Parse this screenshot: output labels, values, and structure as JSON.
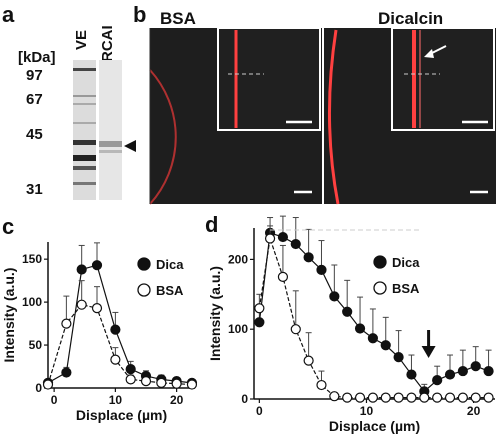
{
  "panels": {
    "a": {
      "letter": "a",
      "unit_label": "[kDa]",
      "lane_labels": [
        "VE",
        "RCAI"
      ],
      "markers": [
        "97",
        "67",
        "45",
        "31"
      ],
      "band_arrow": "arrowhead"
    },
    "b": {
      "letter": "b",
      "images": [
        {
          "label": "BSA"
        },
        {
          "label": "Dicalcin"
        }
      ],
      "colors": {
        "membrane": "#ff3b3b",
        "background": "#202020"
      }
    },
    "c": {
      "letter": "c"
    },
    "d": {
      "letter": "d",
      "arrow": "down-arrow"
    }
  },
  "chart_data": [
    {
      "type": "line",
      "panel": "c",
      "xlabel": "Displace (µm)",
      "ylabel": "Intensity (a.u.)",
      "xlim": [
        -1,
        23
      ],
      "ylim": [
        0,
        170
      ],
      "xticks": [
        0,
        10,
        20
      ],
      "yticks": [
        0,
        50,
        100,
        150
      ],
      "legend_position": "right",
      "series": [
        {
          "name": "Dica",
          "marker": "filled",
          "x": [
            -1,
            2,
            4.5,
            7,
            10,
            12.5,
            15,
            17.5,
            20,
            22.5
          ],
          "y": [
            6,
            18,
            138,
            143,
            68,
            22,
            14,
            10,
            8,
            6
          ],
          "err": [
            4,
            6,
            28,
            26,
            20,
            9,
            6,
            5,
            4,
            3
          ]
        },
        {
          "name": "BSA",
          "marker": "open",
          "x": [
            -1,
            2,
            4.5,
            7,
            10,
            12.5,
            15,
            17.5,
            20,
            22.5
          ],
          "y": [
            4,
            75,
            97,
            93,
            33,
            10,
            8,
            6,
            5,
            4
          ],
          "err": [
            3,
            32,
            28,
            25,
            14,
            5,
            4,
            3,
            3,
            2
          ]
        }
      ]
    },
    {
      "type": "line",
      "panel": "d",
      "xlabel": "Displace (µm)",
      "ylabel": "Intensity (a.u.)",
      "xlim": [
        -0.5,
        22
      ],
      "ylim": [
        0,
        245
      ],
      "xticks": [
        0,
        10,
        20
      ],
      "yticks": [
        0,
        100,
        200
      ],
      "legend_position": "right",
      "arrow_x": 15.8,
      "series": [
        {
          "name": "Dica",
          "marker": "filled",
          "x": [
            0,
            1,
            2.2,
            3.4,
            4.6,
            5.8,
            7,
            8.2,
            9.4,
            10.6,
            11.8,
            13,
            14.2,
            15.4,
            16.6,
            17.8,
            19,
            20.2,
            21.4
          ],
          "y": [
            110,
            238,
            232,
            222,
            203,
            185,
            147,
            125,
            101,
            87,
            77,
            60,
            35,
            11,
            27,
            35,
            40,
            47,
            40
          ],
          "err": [
            15,
            10,
            30,
            38,
            40,
            42,
            45,
            45,
            45,
            42,
            40,
            38,
            28,
            10,
            20,
            28,
            30,
            28,
            30
          ]
        },
        {
          "name": "BSA",
          "marker": "open",
          "x": [
            0,
            1,
            2.2,
            3.4,
            4.6,
            5.8,
            7,
            8.2,
            9.4,
            10.6,
            11.8,
            13,
            14.2,
            15.4,
            16.6,
            17.8,
            19,
            20.2,
            21.4
          ],
          "y": [
            130,
            230,
            175,
            100,
            55,
            20,
            4,
            2,
            2,
            2,
            2,
            2,
            2,
            2,
            2,
            2,
            2,
            2,
            2
          ],
          "err": [
            20,
            30,
            45,
            55,
            40,
            20,
            5,
            2,
            2,
            2,
            2,
            2,
            2,
            2,
            2,
            2,
            2,
            2,
            2
          ]
        }
      ]
    }
  ]
}
